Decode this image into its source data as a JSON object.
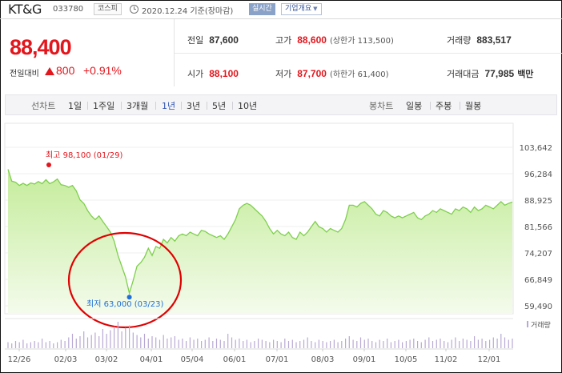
{
  "header": {
    "company": "KT&G",
    "code": "033780",
    "market": "코스피",
    "date_text": "2020.12.24 기준(장마감)",
    "realtime_label": "실시간",
    "overview_label": "기업개요"
  },
  "price": {
    "current": "88,400",
    "change_label": "전일대비",
    "change_amount": "800",
    "change_percent": "+0.91%",
    "direction_icon": "up-triangle-icon"
  },
  "stats": {
    "prev_close": {
      "label": "전일",
      "value": "87,600"
    },
    "high": {
      "label": "고가",
      "value": "88,600",
      "sub": "(상한가 113,500)"
    },
    "volume": {
      "label": "거래량",
      "value": "883,517"
    },
    "open": {
      "label": "시가",
      "value": "88,100"
    },
    "low": {
      "label": "저가",
      "value": "87,700",
      "sub": "(하한가 61,400)"
    },
    "trade_value": {
      "label": "거래대금",
      "value": "77,985",
      "unit": "백만"
    }
  },
  "period_bar": {
    "line_chart_label": "선차트",
    "line_periods": [
      "1일",
      "1주일",
      "3개월",
      "1년",
      "3년",
      "5년",
      "10년"
    ],
    "active_period": "1년",
    "candle_label": "봉차트",
    "candle_periods": [
      "일봉",
      "주봉",
      "월봉"
    ]
  },
  "chart_data": {
    "type": "area",
    "x_tick_labels": [
      "12/26",
      "02/03",
      "03/02",
      "04/01",
      "05/04",
      "06/01",
      "07/01",
      "08/03",
      "09/01",
      "10/05",
      "11/02",
      "12/01"
    ],
    "y_tick_labels": [
      "103,642",
      "96,284",
      "88,925",
      "81,566",
      "74,207",
      "66,849",
      "59,490"
    ],
    "ylim": [
      59490,
      103642
    ],
    "max_annotation": "최고 98,100 (01/29)",
    "min_annotation": "최저 63,000 (03/23)",
    "volume_legend": "거래량",
    "colors": {
      "line": "#7fcf4e",
      "fill_top": "#c4ec9a",
      "fill_bottom": "#f4fbec",
      "max_marker": "#e2161d",
      "min_marker": "#1f6fd8",
      "volume_bar": "#b8a9d4",
      "highlight_circle": "#e00000"
    },
    "series": [
      {
        "values": [
          97500,
          94200,
          93900,
          93000,
          93600,
          93000,
          93700,
          93400,
          94100,
          93500,
          94600,
          93500,
          94000,
          94800,
          93200,
          93000,
          92500,
          93000,
          91500,
          89000,
          88000,
          86000,
          84500,
          83500,
          84500,
          83000,
          81500,
          80000,
          77500,
          73500,
          70500,
          67500,
          63000,
          66500,
          70500,
          71500,
          73000,
          75500,
          73500,
          76000,
          75500,
          78000,
          77000,
          78500,
          77500,
          79000,
          79500,
          79000,
          80000,
          79500,
          79000,
          80500,
          80200,
          79500,
          79000,
          78500,
          79000,
          78000,
          79500,
          81500,
          83500,
          86500,
          87500,
          88000,
          87500,
          86500,
          85500,
          84500,
          83000,
          81000,
          79500,
          80500,
          79500,
          79000,
          80000,
          78500,
          78000,
          80000,
          79000,
          80000,
          81500,
          83000,
          81500,
          81000,
          80000,
          81000,
          80500,
          80000,
          81000,
          83500,
          87500,
          87500,
          87000,
          88000,
          88500,
          87500,
          86500,
          85000,
          84500,
          86000,
          85500,
          84500,
          84000,
          84500,
          84000,
          84500,
          85000,
          85500,
          84000,
          83500,
          84500,
          85000,
          86000,
          85500,
          86500,
          86000,
          85500,
          85000,
          86500,
          86000,
          87000,
          86500,
          85500,
          87000,
          86000,
          86500,
          87500,
          87000,
          86500,
          87500,
          88500,
          87500,
          88000,
          88400
        ]
      },
      {
        "values": [
          5,
          4,
          6,
          5,
          7,
          4,
          5,
          6,
          5,
          8,
          5,
          6,
          4,
          5,
          7,
          6,
          9,
          12,
          8,
          10,
          14,
          9,
          11,
          13,
          10,
          16,
          12,
          15,
          18,
          22,
          14,
          17,
          19,
          13,
          11,
          9,
          12,
          8,
          10,
          9,
          7,
          11,
          8,
          9,
          10,
          7,
          8,
          6,
          9,
          7,
          8,
          6,
          7,
          9,
          6,
          8,
          7,
          6,
          12,
          9,
          7,
          8,
          6,
          7,
          5,
          6,
          8,
          7,
          6,
          5,
          7,
          6,
          5,
          8,
          6,
          7,
          5,
          6,
          7,
          9,
          6,
          5,
          7,
          6,
          5,
          6,
          7,
          5,
          6,
          8,
          10,
          7,
          6,
          9,
          7,
          8,
          6,
          5,
          7,
          6,
          8,
          5,
          6,
          7,
          5,
          6,
          7,
          8,
          6,
          5,
          7,
          9,
          6,
          7,
          8,
          6,
          5,
          7,
          9,
          6,
          8,
          7,
          6,
          10,
          7,
          8,
          6,
          7,
          9,
          8,
          12,
          9,
          7,
          8
        ]
      }
    ]
  }
}
